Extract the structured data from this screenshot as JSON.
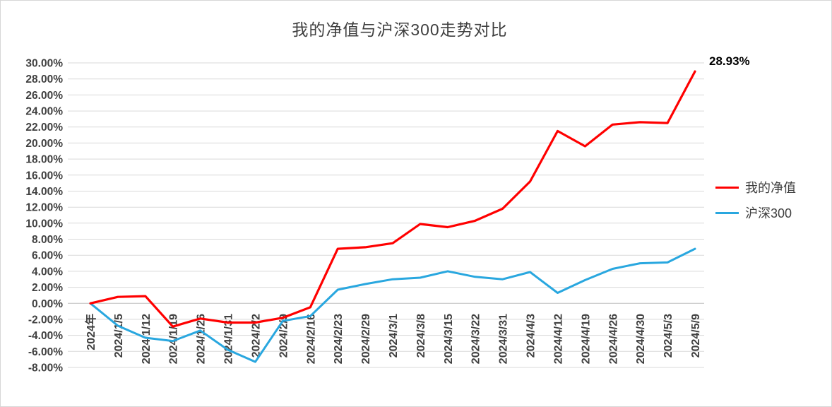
{
  "title": "我的净值与沪深300走势对比",
  "end_label": "28.93%",
  "y_axis_labels": [
    "30.00%",
    "28.00%",
    "26.00%",
    "24.00%",
    "22.00%",
    "20.00%",
    "18.00%",
    "16.00%",
    "14.00%",
    "12.00%",
    "10.00%",
    "8.00%",
    "6.00%",
    "4.00%",
    "2.00%",
    "0.00%",
    "-2.00%",
    "-4.00%",
    "-6.00%",
    "-8.00%"
  ],
  "colors": {
    "grid": "#d9d9d9",
    "zero_axis": "#bfbfbf",
    "text": "#404040",
    "annotation": "#000000",
    "series_red": "#ff0000",
    "series_blue": "#29a7df"
  },
  "chart_data": {
    "type": "line",
    "title": "我的净值与沪深300走势对比",
    "categories": [
      "2024年",
      "2024/1/5",
      "2024/1/12",
      "2024/1/19",
      "2024/1/26",
      "2024/1/31",
      "2024/2/2",
      "2024/2/9",
      "2024/2/16",
      "2024/2/23",
      "2024/2/29",
      "2024/3/1",
      "2024/3/8",
      "2024/3/15",
      "2024/3/22",
      "2024/3/31",
      "2024/4/3",
      "2024/4/12",
      "2024/4/19",
      "2024/4/26",
      "2024/4/30",
      "2024/5/3",
      "2024/5/9"
    ],
    "series": [
      {
        "name": "我的净值",
        "color": "#ff0000",
        "stroke_width": 3.2,
        "values": [
          0,
          0.8,
          0.9,
          -2.9,
          -1.9,
          -2.4,
          -2.4,
          -1.8,
          -0.5,
          6.8,
          7.0,
          7.5,
          9.9,
          9.5,
          10.3,
          11.8,
          15.2,
          21.5,
          19.6,
          22.3,
          22.6,
          22.5,
          28.93
        ]
      },
      {
        "name": "沪深300",
        "color": "#29a7df",
        "stroke_width": 3,
        "values": [
          0,
          -2.8,
          -4.3,
          -4.7,
          -3.4,
          -5.8,
          -7.3,
          -2.2,
          -1.6,
          1.7,
          2.4,
          3.0,
          3.2,
          4.0,
          3.3,
          3.0,
          3.9,
          1.3,
          2.9,
          4.3,
          5.0,
          5.1,
          6.8
        ]
      }
    ],
    "ylim": [
      -8,
      30
    ],
    "ytick_step": 2,
    "ytick_format": "percent2",
    "grid": true,
    "legend_position": "right",
    "annotation": {
      "text": "28.93%",
      "series": "我的净值",
      "at": "last"
    }
  }
}
